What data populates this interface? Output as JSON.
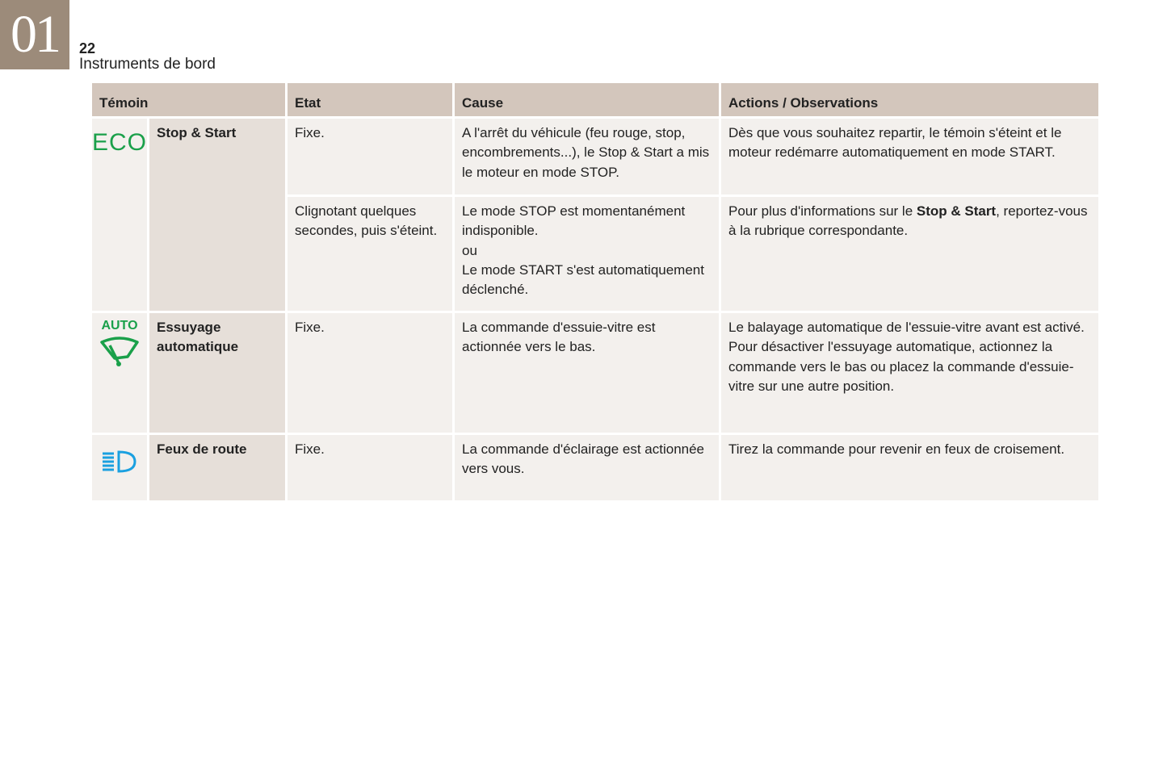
{
  "header": {
    "chapter": "01",
    "page_number": "22",
    "section_title": "Instruments de bord"
  },
  "table": {
    "columns": [
      "Témoin",
      "Etat",
      "Cause",
      "Actions / Observations"
    ],
    "rows": [
      {
        "icon": "eco-icon",
        "icon_text": "ECO",
        "icon_color": "#1aa04a",
        "name": "Stop & Start",
        "states": [
          {
            "etat": "Fixe.",
            "cause": "A l'arrêt du véhicule (feu rouge, stop, encombrements...), le Stop & Start a mis le moteur en mode STOP.",
            "actions": "Dès que vous souhaitez repartir, le témoin s'éteint et le moteur redémarre automatiquement en mode START."
          },
          {
            "etat": "Clignotant quelques secondes, puis s'éteint.",
            "cause_lines": [
              "Le mode STOP est momentanément indisponible.",
              "ou",
              "Le mode START s'est automatiquement déclenché."
            ],
            "actions_pre": "Pour plus d'informations sur le ",
            "actions_bold": "Stop & Start",
            "actions_post": ", reportez-vous à la rubrique correspondante."
          }
        ]
      },
      {
        "icon": "auto-wiper-icon",
        "icon_text": "AUTO",
        "icon_color": "#1aa04a",
        "name": "Essuyage automatique",
        "states": [
          {
            "etat": "Fixe.",
            "cause": "La commande d'essuie-vitre est actionnée vers le bas.",
            "actions_lines": [
              "Le balayage automatique de l'essuie-vitre avant est activé.",
              "Pour désactiver l'essuyage automatique, actionnez la commande vers le bas ou placez la commande d'essuie-vitre sur une autre position."
            ]
          }
        ]
      },
      {
        "icon": "high-beam-icon",
        "icon_color": "#1aa0e0",
        "name": "Feux de route",
        "states": [
          {
            "etat": "Fixe.",
            "cause": "La commande d'éclairage est actionnée vers vous.",
            "actions": "Tirez la commande pour revenir en feux de croisement."
          }
        ]
      }
    ]
  }
}
